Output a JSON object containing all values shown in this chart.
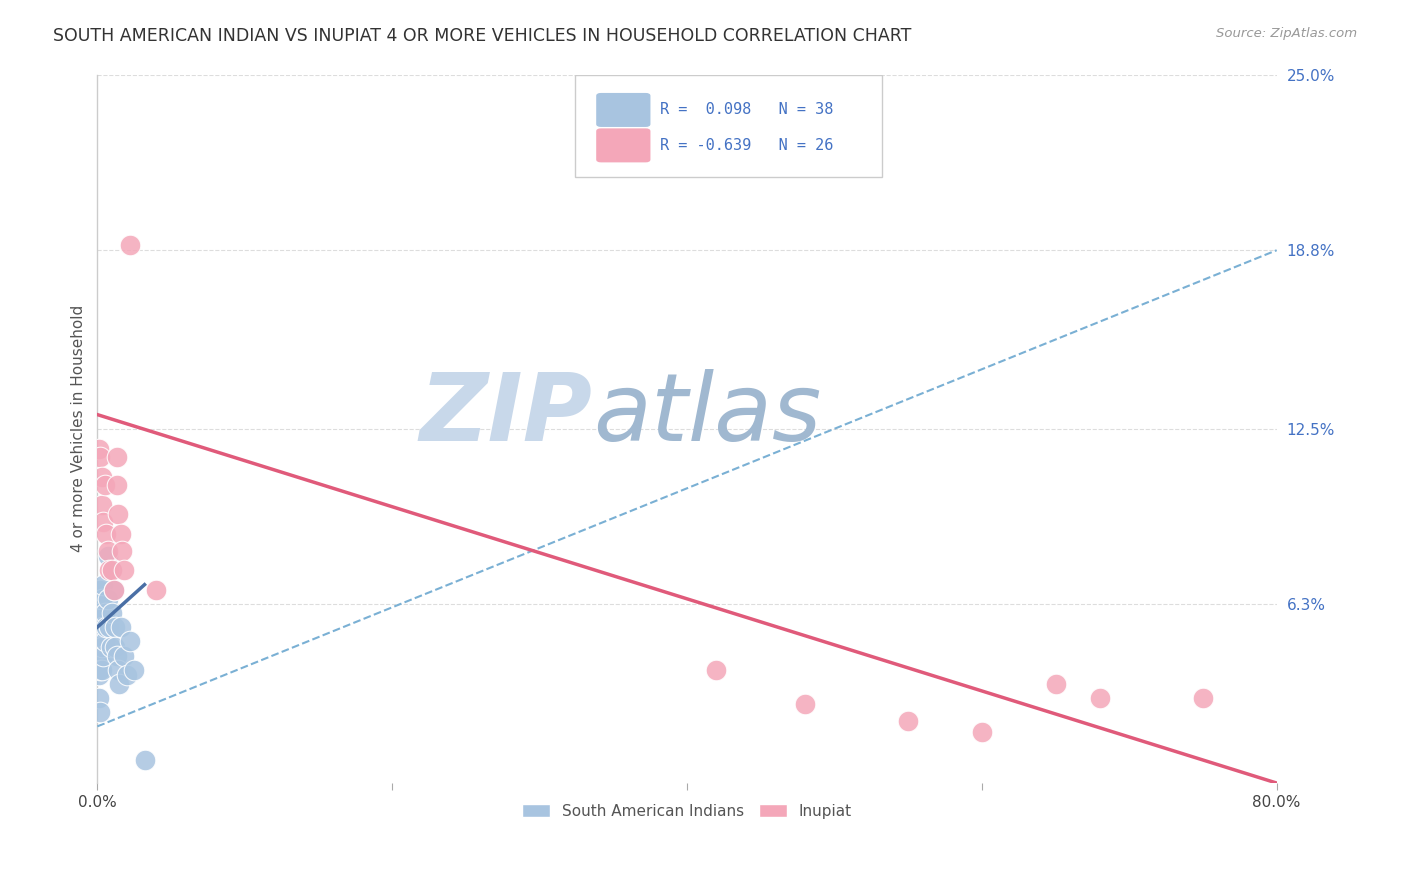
{
  "title": "SOUTH AMERICAN INDIAN VS INUPIAT 4 OR MORE VEHICLES IN HOUSEHOLD CORRELATION CHART",
  "source": "Source: ZipAtlas.com",
  "ylabel": "4 or more Vehicles in Household",
  "xlim": [
    0.0,
    0.8
  ],
  "ylim": [
    0.0,
    0.25
  ],
  "xticks": [
    0.0,
    0.2,
    0.4,
    0.6,
    0.8
  ],
  "xticklabels": [
    "0.0%",
    "",
    "",
    "",
    "80.0%"
  ],
  "ytick_right_labels": [
    "25.0%",
    "18.8%",
    "12.5%",
    "6.3%",
    ""
  ],
  "ytick_right_values": [
    0.25,
    0.188,
    0.125,
    0.063,
    0.0
  ],
  "blue_color": "#a8c4e0",
  "pink_color": "#f4a7b9",
  "blue_line_color": "#4a6fa5",
  "pink_line_color": "#e05a7a",
  "dashed_line_color": "#7ab0d4",
  "legend_blue_color": "#a8c4e0",
  "legend_pink_color": "#f4a7b9",
  "legend_text_color": "#4472c4",
  "watermark_top": "ZIP",
  "watermark_bottom": "atlas",
  "watermark_color_top": "#c8d8ea",
  "watermark_color_bottom": "#a0b8d0",
  "R_blue": 0.098,
  "N_blue": 38,
  "R_pink": -0.639,
  "N_pink": 26,
  "blue_scatter_x": [
    0.001,
    0.001,
    0.001,
    0.001,
    0.001,
    0.002,
    0.002,
    0.002,
    0.002,
    0.002,
    0.003,
    0.003,
    0.003,
    0.003,
    0.004,
    0.004,
    0.004,
    0.005,
    0.005,
    0.006,
    0.007,
    0.007,
    0.008,
    0.009,
    0.01,
    0.01,
    0.011,
    0.012,
    0.012,
    0.013,
    0.014,
    0.015,
    0.016,
    0.018,
    0.02,
    0.022,
    0.025,
    0.032
  ],
  "blue_scatter_y": [
    0.06,
    0.052,
    0.045,
    0.038,
    0.03,
    0.068,
    0.058,
    0.05,
    0.04,
    0.025,
    0.065,
    0.055,
    0.048,
    0.04,
    0.07,
    0.055,
    0.045,
    0.06,
    0.05,
    0.055,
    0.08,
    0.065,
    0.055,
    0.048,
    0.075,
    0.06,
    0.068,
    0.055,
    0.048,
    0.045,
    0.04,
    0.035,
    0.055,
    0.045,
    0.038,
    0.05,
    0.04,
    0.008
  ],
  "pink_scatter_x": [
    0.001,
    0.002,
    0.003,
    0.003,
    0.004,
    0.005,
    0.006,
    0.007,
    0.008,
    0.01,
    0.011,
    0.013,
    0.013,
    0.014,
    0.016,
    0.017,
    0.018,
    0.022,
    0.04,
    0.42,
    0.48,
    0.55,
    0.6,
    0.65,
    0.68,
    0.75
  ],
  "pink_scatter_y": [
    0.118,
    0.115,
    0.108,
    0.098,
    0.092,
    0.105,
    0.088,
    0.082,
    0.075,
    0.075,
    0.068,
    0.115,
    0.105,
    0.095,
    0.088,
    0.082,
    0.075,
    0.19,
    0.068,
    0.04,
    0.028,
    0.022,
    0.018,
    0.035,
    0.03,
    0.03
  ],
  "blue_trend_x": [
    0.0,
    0.032
  ],
  "blue_trend_y": [
    0.055,
    0.07
  ],
  "pink_trend_x": [
    0.0,
    0.8
  ],
  "pink_trend_y": [
    0.13,
    0.0
  ],
  "dashed_trend_x": [
    0.0,
    0.8
  ],
  "dashed_trend_y": [
    0.02,
    0.188
  ],
  "legend_labels": [
    "South American Indians",
    "Inupiat"
  ],
  "background_color": "#ffffff",
  "grid_color": "#dddddd"
}
